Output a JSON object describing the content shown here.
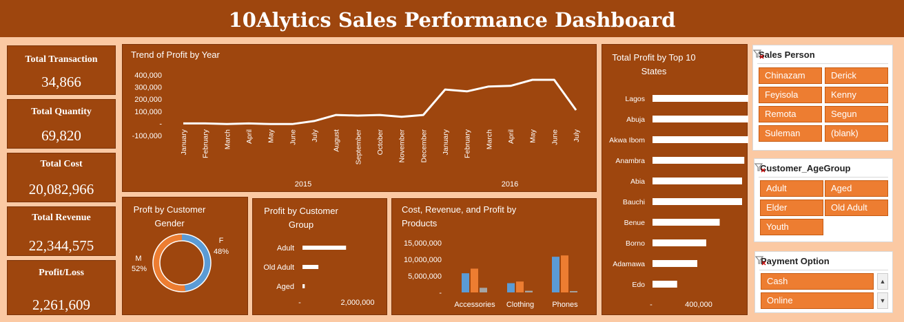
{
  "title": "10Alytics Sales Performance Dashboard",
  "kpis": [
    {
      "label": "Total Transaction",
      "value": "34,866"
    },
    {
      "label": "Total Quantity",
      "value": "69,820"
    },
    {
      "label": "Total Cost",
      "value": "20,082,966"
    },
    {
      "label": "Total Revenue",
      "value": "22,344,575"
    },
    {
      "label": "Profit/Loss",
      "value": "2,261,609"
    }
  ],
  "profit_trend": {
    "title": "Trend of Profit by Year",
    "y_ticks": [
      "400,000",
      "300,000",
      "200,000",
      "100,000",
      "-",
      "-100,000"
    ],
    "months": [
      "January",
      "February",
      "March",
      "April",
      "May",
      "June",
      "July",
      "August",
      "September",
      "October",
      "November",
      "December",
      "January",
      "February",
      "March",
      "April",
      "May",
      "June",
      "July"
    ],
    "years": [
      "2015",
      "2016"
    ],
    "values": [
      0,
      0,
      -5000,
      0,
      -5000,
      -5000,
      20000,
      70000,
      65000,
      70000,
      55000,
      70000,
      280000,
      265000,
      305000,
      310000,
      360000,
      360000,
      110000
    ]
  },
  "top_states": {
    "title_line1": "Total Profit by Top 10",
    "title_line2": "States",
    "states": [
      "Lagos",
      "Abuja",
      "Akwa Ibom",
      "Anambra",
      "Abia",
      "Bauchi",
      "Benue",
      "Borno",
      "Adamawa",
      "Edo"
    ],
    "values": [
      380000,
      312000,
      225000,
      205000,
      200000,
      200000,
      150000,
      120000,
      100000,
      55000
    ],
    "x_ticks": [
      "-",
      "400,000"
    ]
  },
  "gender": {
    "title_line1": "Proft by Customer",
    "title_line2": "Gender",
    "slices": [
      {
        "label": "F",
        "pct": "48%",
        "value": 48,
        "color": "#5b9bd5"
      },
      {
        "label": "M",
        "pct": "52%",
        "value": 52,
        "color": "#ed7d31"
      }
    ]
  },
  "customer_group": {
    "title_line1": "Profit by Customer",
    "title_line2": "Group",
    "groups": [
      "Adult",
      "Old Adult",
      "Aged"
    ],
    "values": [
      1150000,
      420000,
      60000
    ],
    "x_ticks": [
      "-",
      "2,000,000"
    ]
  },
  "products": {
    "title_line1": "Cost, Revenue, and Profit by",
    "title_line2": "Products",
    "categories": [
      "Accessories",
      "Clothing",
      "Phones"
    ],
    "y_ticks": [
      "15,000,000",
      "10,000,000",
      "5,000,000",
      "-"
    ],
    "series": [
      {
        "color": "#5b9bd5",
        "values": [
          5800000,
          2800000,
          10800000
        ]
      },
      {
        "color": "#ed7d31",
        "values": [
          7200000,
          3300000,
          11200000
        ]
      },
      {
        "color": "#a5a5a5",
        "values": [
          1400000,
          500000,
          400000
        ]
      }
    ]
  },
  "slicers": {
    "sales_person": {
      "title": "Sales Person",
      "items": [
        "Chinazam",
        "Derick",
        "Feyisola",
        "Kenny",
        "Remota",
        "Segun",
        "Suleman",
        "(blank)"
      ]
    },
    "age_group": {
      "title": "Customer_AgeGroup",
      "items": [
        "Adult",
        "Aged",
        "Elder",
        "Old Adult",
        "Youth"
      ]
    },
    "payment": {
      "title": "Payment Option",
      "items": [
        "Cash",
        "Online"
      ]
    }
  },
  "chart_data": [
    {
      "type": "line",
      "title": "Trend of Profit by Year",
      "x": [
        "January",
        "February",
        "March",
        "April",
        "May",
        "June",
        "July",
        "August",
        "September",
        "October",
        "November",
        "December",
        "January",
        "February",
        "March",
        "April",
        "May",
        "June",
        "July"
      ],
      "x_groups": [
        "2015",
        "2016"
      ],
      "series": [
        {
          "values": [
            0,
            0,
            -5000,
            0,
            -5000,
            -5000,
            20000,
            70000,
            65000,
            70000,
            55000,
            70000,
            280000,
            265000,
            305000,
            310000,
            360000,
            360000,
            110000
          ]
        }
      ],
      "ylim": [
        -100000,
        400000
      ]
    },
    {
      "type": "bar",
      "title": "Total Profit by Top 10 States",
      "orientation": "horizontal",
      "categories": [
        "Lagos",
        "Abuja",
        "Akwa Ibom",
        "Anambra",
        "Abia",
        "Bauchi",
        "Benue",
        "Borno",
        "Adamawa",
        "Edo"
      ],
      "values": [
        380000,
        312000,
        225000,
        205000,
        200000,
        200000,
        150000,
        120000,
        100000,
        55000
      ]
    },
    {
      "type": "pie",
      "title": "Proft by Customer Gender",
      "categories": [
        "F",
        "M"
      ],
      "values": [
        48,
        52
      ]
    },
    {
      "type": "bar",
      "title": "Profit by Customer Group",
      "orientation": "horizontal",
      "categories": [
        "Adult",
        "Old Adult",
        "Aged"
      ],
      "values": [
        1150000,
        420000,
        60000
      ]
    },
    {
      "type": "bar",
      "title": "Cost, Revenue, and Profit by Products",
      "categories": [
        "Accessories",
        "Clothing",
        "Phones"
      ],
      "series": [
        {
          "values": [
            5800000,
            2800000,
            10800000
          ]
        },
        {
          "values": [
            7200000,
            3300000,
            11200000
          ]
        },
        {
          "values": [
            1400000,
            500000,
            400000
          ]
        }
      ],
      "ylim": [
        0,
        15000000
      ]
    }
  ]
}
